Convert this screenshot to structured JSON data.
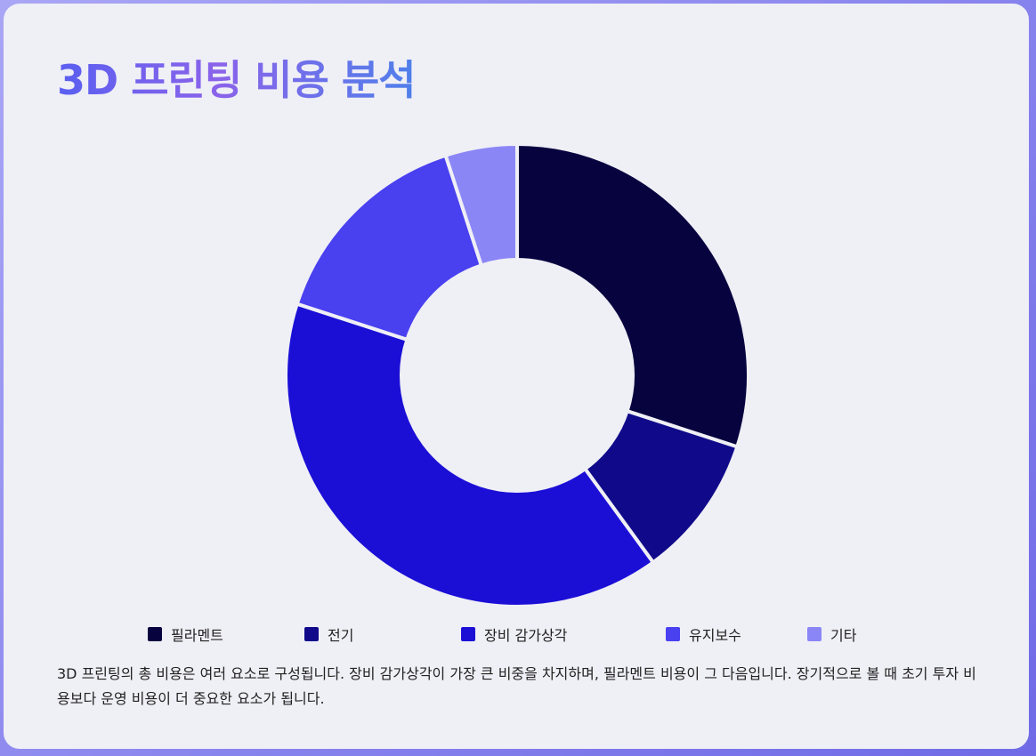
{
  "title": "3D 프린팅 비용 분석",
  "description": "3D 프린팅의 총 비용은 여러 요소로 구성됩니다. 장비 감가상각이 가장 큰 비중을 차지하며, 필라멘트 비용이 그 다음입니다. 장기적으로 볼 때 초기 투자 비용보다 운영 비용이 더 중요한 요소가 됩니다.",
  "chart_data": {
    "type": "pie",
    "variant": "doughnut",
    "title": "",
    "categories": [
      "필라멘트",
      "전기",
      "장비 감가상각",
      "유지보수",
      "기타"
    ],
    "values": [
      30,
      10,
      40,
      15,
      5
    ],
    "colors": [
      "#07033f",
      "#100a8a",
      "#1b0fd6",
      "#4940f0",
      "#8b86f6"
    ],
    "legend_position": "bottom"
  }
}
